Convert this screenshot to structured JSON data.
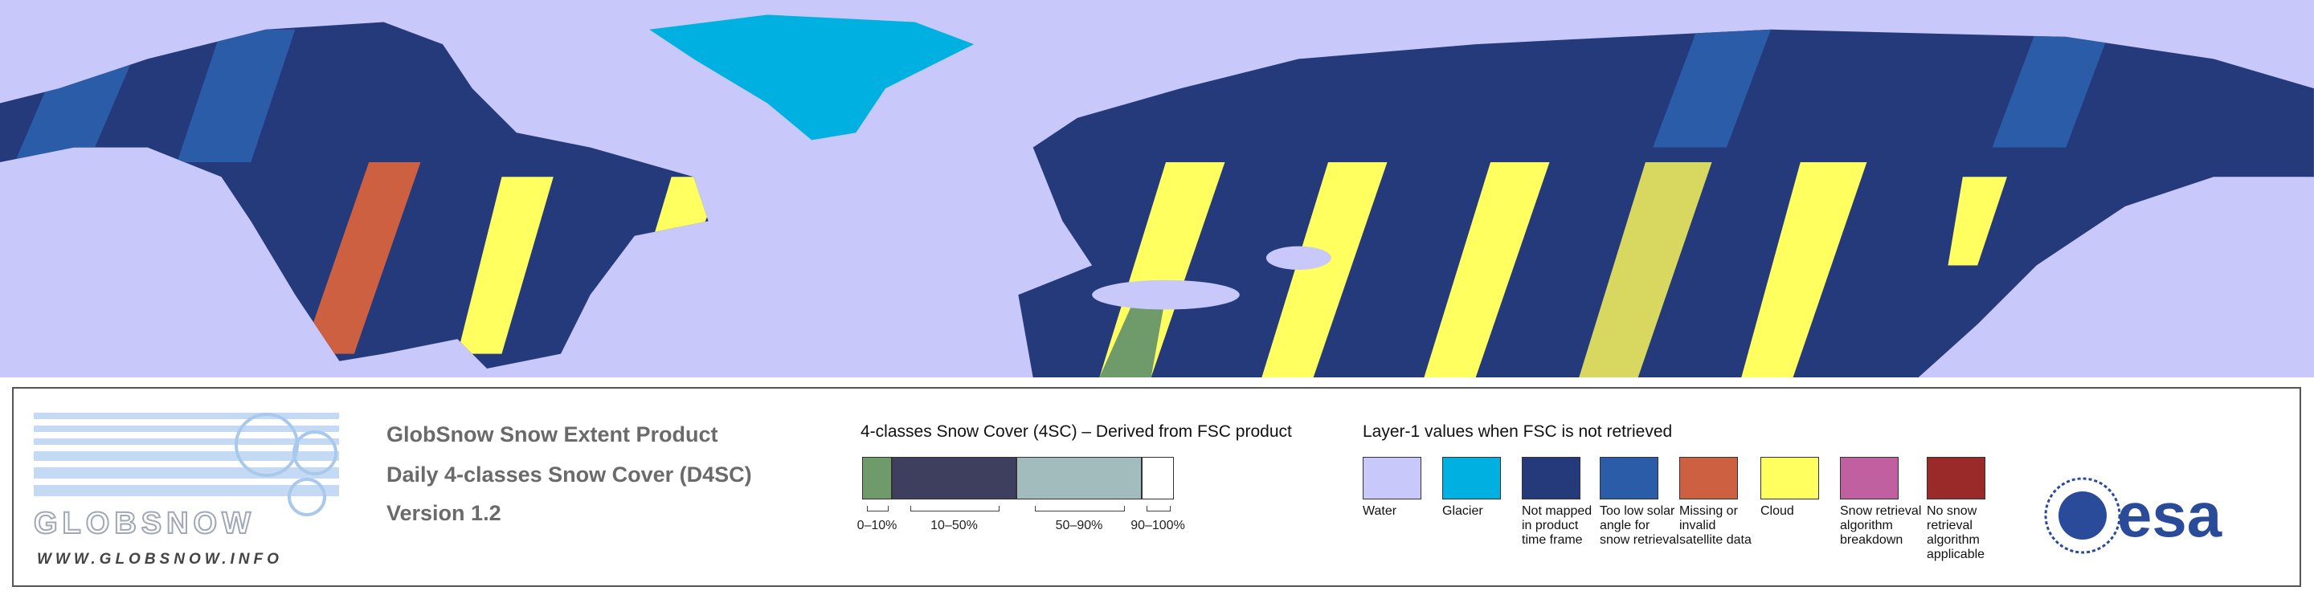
{
  "header": {
    "title": "GlobSnow Snow Extent Product",
    "subtitle": "Daily 4-classes Snow Cover (D4SC)",
    "version": "Version 1.2"
  },
  "logo": {
    "name": "GLOBSNOW",
    "url": "WWW.GLOBSNOW.INFO"
  },
  "scale_4sc": {
    "title": "4-classes Snow Cover (4SC) – Derived from FSC product",
    "classes": [
      {
        "label": "0–10%",
        "color": "#6f9a6a"
      },
      {
        "label": "10–50%",
        "color": "#3e3e5e"
      },
      {
        "label": "50–90%",
        "color": "#a2bcbe"
      },
      {
        "label": "90–100%",
        "color": "#ffffff"
      }
    ]
  },
  "layer1": {
    "title": "Layer-1 values when FSC is not retrieved",
    "items": [
      {
        "label": "Water",
        "color": "#c8c8fa"
      },
      {
        "label": "Glacier",
        "color": "#00b0e0"
      },
      {
        "label": "Not mapped in product time frame",
        "color": "#253a7a"
      },
      {
        "label": "Too low solar angle for snow retrieval",
        "color": "#2a5ca8"
      },
      {
        "label": "Missing or invalid satellite data",
        "color": "#cc6040"
      },
      {
        "label": "Cloud",
        "color": "#ffff60"
      },
      {
        "label": "Snow retrieval algorithm breakdown",
        "color": "#c060a0"
      },
      {
        "label": "No snow retrieval algorithm applicable",
        "color": "#9a2a2a"
      }
    ]
  },
  "esa": {
    "label": "esa"
  }
}
